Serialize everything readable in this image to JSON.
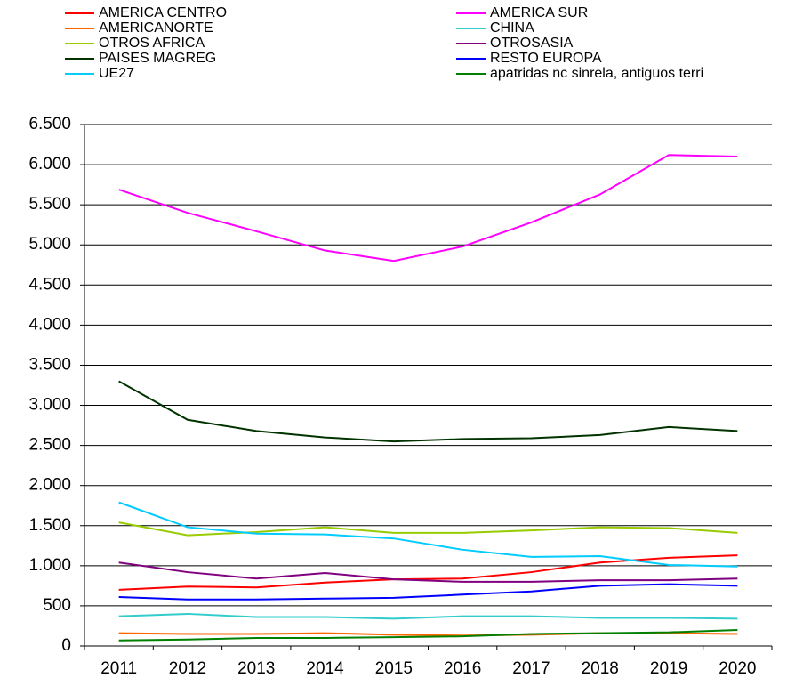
{
  "chart_data": {
    "type": "line",
    "categories": [
      "2011",
      "2012",
      "2013",
      "2014",
      "2015",
      "2016",
      "2017",
      "2018",
      "2019",
      "2020"
    ],
    "series": [
      {
        "name": "AMERICA CENTRO",
        "color": "#ff0000",
        "values": [
          700,
          740,
          730,
          790,
          830,
          840,
          920,
          1040,
          1100,
          1130
        ]
      },
      {
        "name": "AMERICA SUR",
        "color": "#ff00ff",
        "values": [
          5690,
          5400,
          5170,
          4930,
          4800,
          4980,
          5280,
          5630,
          6120,
          6100
        ]
      },
      {
        "name": "AMERICANORTE",
        "color": "#ff6600",
        "values": [
          160,
          150,
          150,
          160,
          140,
          130,
          140,
          160,
          160,
          150
        ]
      },
      {
        "name": "CHINA",
        "color": "#33cccc",
        "values": [
          370,
          400,
          360,
          360,
          340,
          370,
          370,
          350,
          350,
          340
        ]
      },
      {
        "name": "OTROS AFRICA",
        "color": "#99cc00",
        "values": [
          1540,
          1380,
          1420,
          1480,
          1410,
          1410,
          1440,
          1480,
          1470,
          1410
        ]
      },
      {
        "name": "OTROSASIA",
        "color": "#800080",
        "values": [
          1040,
          920,
          840,
          910,
          830,
          800,
          800,
          820,
          820,
          840
        ]
      },
      {
        "name": "PAISES MAGREG",
        "color": "#003300",
        "values": [
          3300,
          2820,
          2680,
          2600,
          2550,
          2580,
          2590,
          2630,
          2730,
          2680
        ]
      },
      {
        "name": "RESTO EUROPA",
        "color": "#0000ff",
        "values": [
          610,
          580,
          580,
          590,
          600,
          640,
          680,
          750,
          770,
          750
        ]
      },
      {
        "name": "UE27",
        "color": "#00ccff",
        "values": [
          1790,
          1480,
          1400,
          1390,
          1340,
          1200,
          1110,
          1120,
          1010,
          990
        ]
      },
      {
        "name": "apatridas nc sinrela, antiguos terri",
        "color": "#008000",
        "values": [
          70,
          80,
          100,
          100,
          110,
          120,
          150,
          160,
          170,
          200
        ]
      }
    ],
    "ylim": [
      0,
      6500
    ],
    "yticks": [
      0,
      500,
      {
        "value": 1000,
        "label": "1.000"
      },
      {
        "value": 1500,
        "label": "1.500"
      },
      {
        "value": 2000,
        "label": "2.000"
      },
      {
        "value": 2500,
        "label": "2.500"
      },
      {
        "value": 3000,
        "label": "3.000"
      },
      {
        "value": 3500,
        "label": "3.500"
      },
      {
        "value": 4000,
        "label": "4.000"
      },
      {
        "value": 4500,
        "label": "4.500"
      },
      {
        "value": 5000,
        "label": "5.000"
      },
      {
        "value": 5500,
        "label": "5.500"
      },
      {
        "value": 6000,
        "label": "6.000"
      },
      {
        "value": 6500,
        "label": "6.500"
      }
    ],
    "grid": true,
    "legend": "top"
  }
}
